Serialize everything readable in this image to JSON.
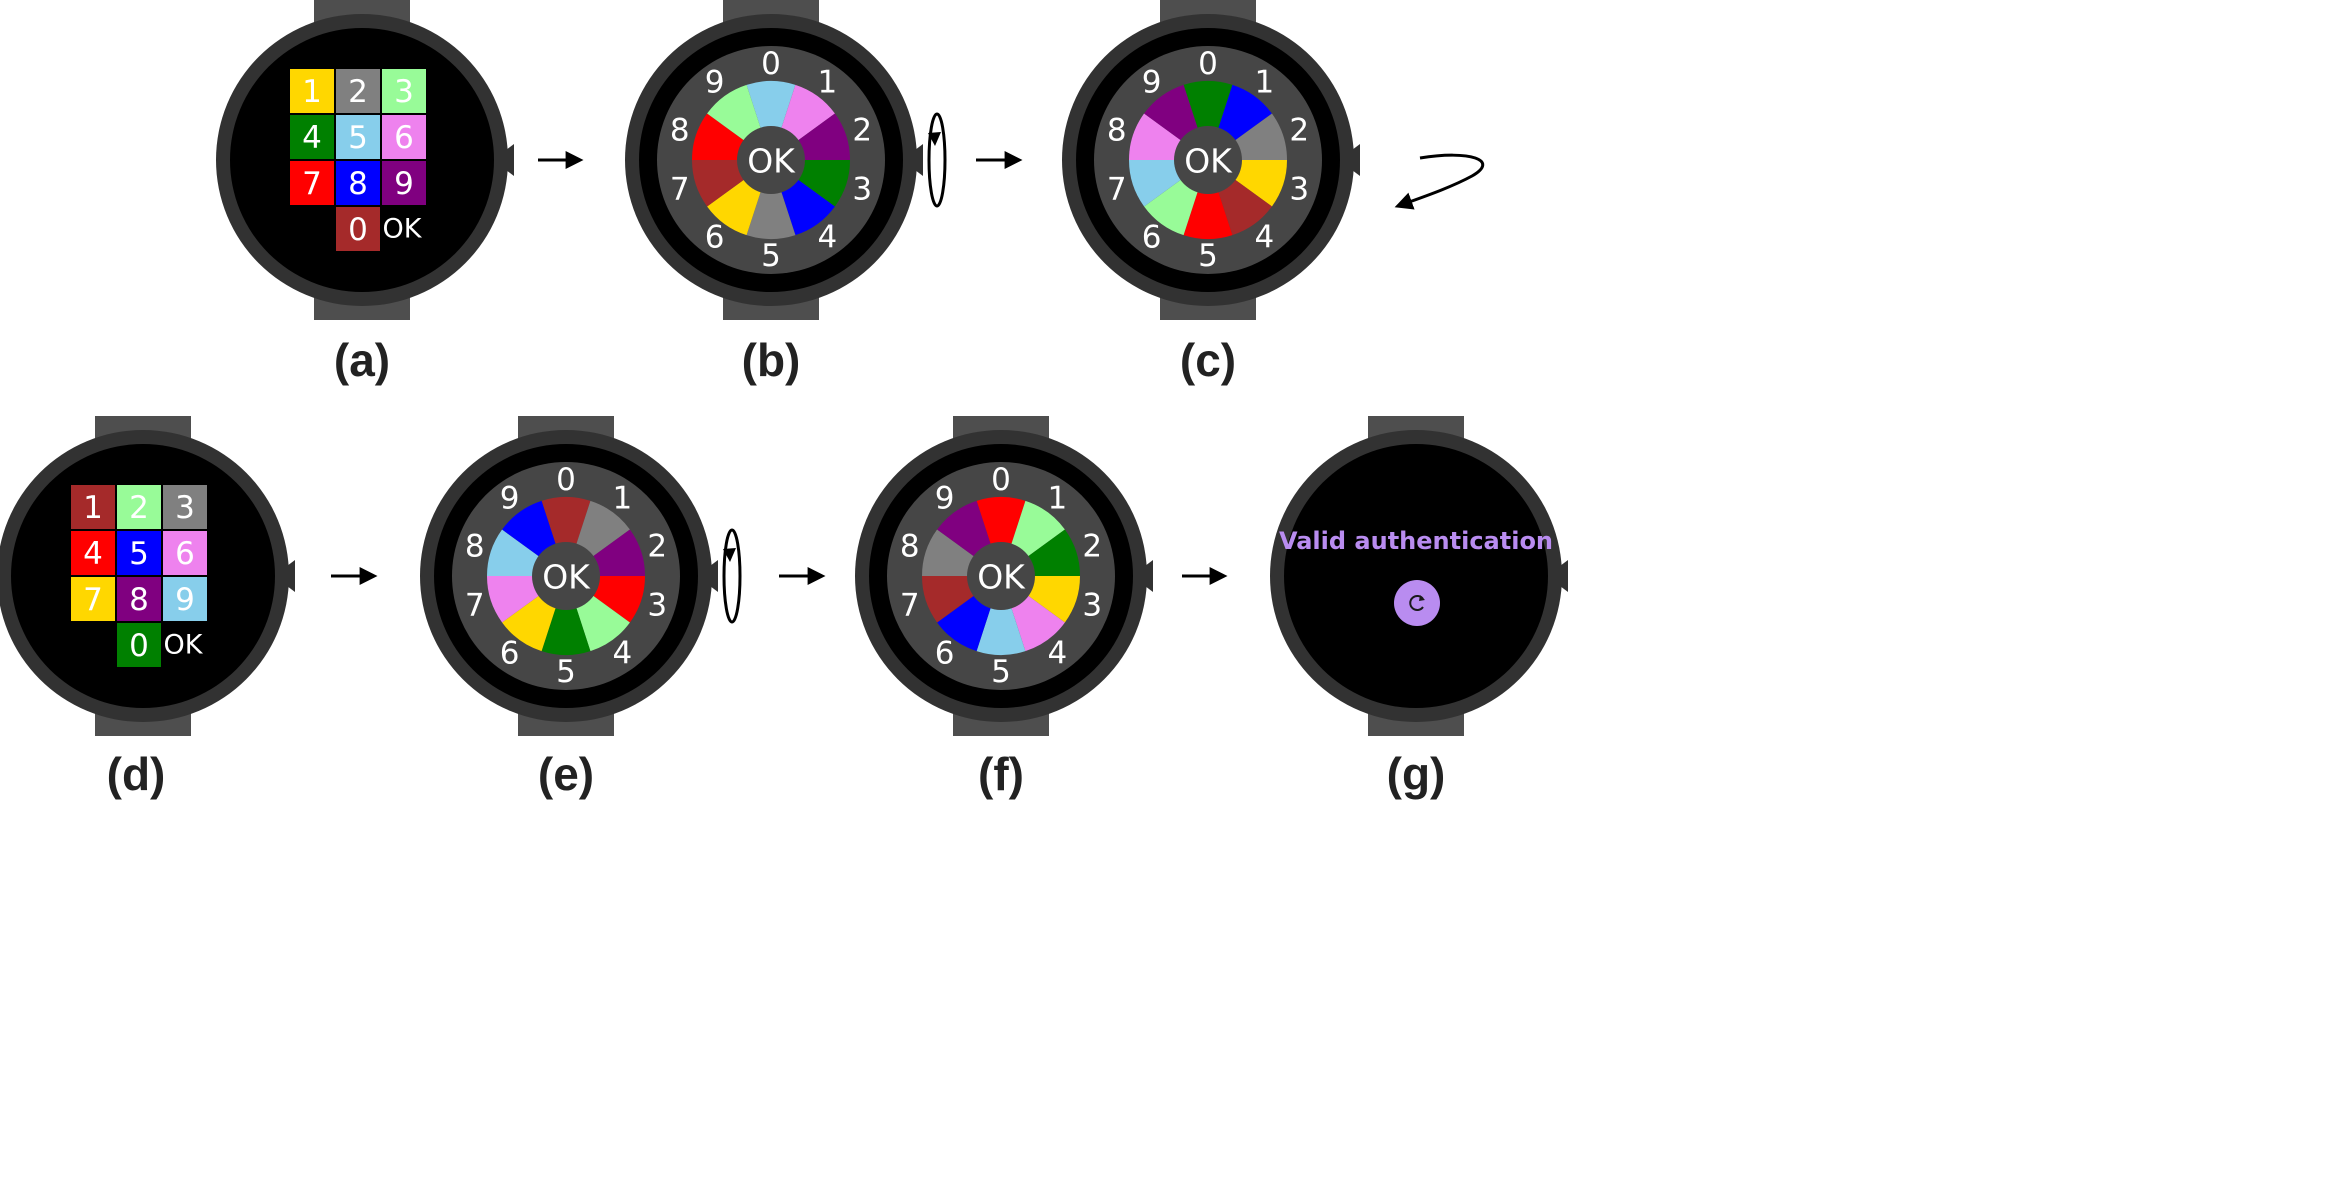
{
  "colors": {
    "band": "#4e4e4e",
    "bezel": "#323232",
    "screen": "#000000",
    "ring": "#464646",
    "hub": "#464646",
    "text": "#ffffff",
    "caption": "#222222",
    "auth_text": "#b98cf0",
    "auth_button": "#b98cf0",
    "palette": {
      "yellow": "#ffd700",
      "gray": "#808080",
      "lightgreen": "#98fb98",
      "green": "#008000",
      "skyblue": "#87ceeb",
      "violet": "#ee82ee",
      "red": "#ff0000",
      "blue": "#0000ff",
      "purple": "#800080",
      "brown": "#a52a2a"
    }
  },
  "panels": [
    {
      "caption": "(a)",
      "type": "keypad",
      "keys": [
        {
          "label": "1",
          "color": "yellow"
        },
        {
          "label": "2",
          "color": "gray"
        },
        {
          "label": "3",
          "color": "lightgreen"
        },
        {
          "label": "4",
          "color": "green"
        },
        {
          "label": "5",
          "color": "skyblue"
        },
        {
          "label": "6",
          "color": "violet"
        },
        {
          "label": "7",
          "color": "red"
        },
        {
          "label": "8",
          "color": "blue"
        },
        {
          "label": "9",
          "color": "purple"
        },
        {
          "label": "0",
          "color": "brown"
        }
      ],
      "ok_label": "OK"
    },
    {
      "caption": "(b)",
      "type": "dial",
      "rotation_icon": "rotate-crown-icon",
      "ring_labels": [
        "0",
        "1",
        "2",
        "3",
        "4",
        "5",
        "6",
        "7",
        "8",
        "9"
      ],
      "sector_colors": [
        "skyblue",
        "violet",
        "purple",
        "green",
        "blue",
        "gray",
        "yellow",
        "brown",
        "red",
        "lightgreen"
      ],
      "ok_label": "OK"
    },
    {
      "caption": "(c)",
      "type": "dial",
      "ring_labels": [
        "0",
        "1",
        "2",
        "3",
        "4",
        "5",
        "6",
        "7",
        "8",
        "9"
      ],
      "sector_colors": [
        "green",
        "blue",
        "gray",
        "yellow",
        "brown",
        "red",
        "lightgreen",
        "skyblue",
        "violet",
        "purple"
      ],
      "ok_label": "OK"
    },
    {
      "caption": "(d)",
      "type": "keypad",
      "keys": [
        {
          "label": "1",
          "color": "brown"
        },
        {
          "label": "2",
          "color": "lightgreen"
        },
        {
          "label": "3",
          "color": "gray"
        },
        {
          "label": "4",
          "color": "red"
        },
        {
          "label": "5",
          "color": "blue"
        },
        {
          "label": "6",
          "color": "violet"
        },
        {
          "label": "7",
          "color": "yellow"
        },
        {
          "label": "8",
          "color": "purple"
        },
        {
          "label": "9",
          "color": "skyblue"
        },
        {
          "label": "0",
          "color": "green"
        }
      ],
      "ok_label": "OK"
    },
    {
      "caption": "(e)",
      "type": "dial",
      "rotation_icon": "rotate-crown-icon",
      "ring_labels": [
        "0",
        "1",
        "2",
        "3",
        "4",
        "5",
        "6",
        "7",
        "8",
        "9"
      ],
      "sector_colors": [
        "brown",
        "gray",
        "purple",
        "red",
        "lightgreen",
        "green",
        "yellow",
        "violet",
        "skyblue",
        "blue"
      ],
      "ok_label": "OK"
    },
    {
      "caption": "(f)",
      "type": "dial",
      "ring_labels": [
        "0",
        "1",
        "2",
        "3",
        "4",
        "5",
        "6",
        "7",
        "8",
        "9"
      ],
      "sector_colors": [
        "red",
        "lightgreen",
        "green",
        "yellow",
        "violet",
        "skyblue",
        "blue",
        "brown",
        "gray",
        "purple"
      ],
      "ok_label": "OK"
    },
    {
      "caption": "(g)",
      "type": "result",
      "message": "Valid authentication",
      "button_icon": "refresh-icon"
    }
  ],
  "connectors": [
    {
      "from": "(a)",
      "to": "(b)",
      "icon": "arrow-right-icon"
    },
    {
      "from": "(b)",
      "to": "(c)",
      "icon": "arrow-right-icon"
    },
    {
      "from": "(c)",
      "to": "(d)",
      "icon": "curved-arrow-icon"
    },
    {
      "from": "(d)",
      "to": "(e)",
      "icon": "arrow-right-icon"
    },
    {
      "from": "(e)",
      "to": "(f)",
      "icon": "arrow-right-icon"
    },
    {
      "from": "(f)",
      "to": "(g)",
      "icon": "arrow-right-icon"
    }
  ]
}
